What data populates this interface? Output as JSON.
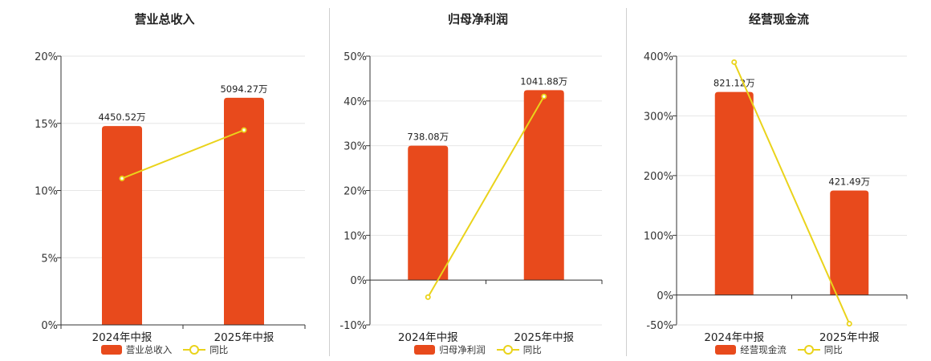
{
  "colors": {
    "bar": "#e84a1c",
    "line": "#ead31b",
    "axis": "#333333",
    "grid": "#e6e6e6"
  },
  "chart_data": [
    {
      "type": "bar",
      "title": "营业总收入",
      "categories": [
        "2024年中报",
        "2025年中报"
      ],
      "ylim": [
        0,
        20
      ],
      "yticks": [
        "0%",
        "5%",
        "10%",
        "15%",
        "20%"
      ],
      "ytick_values": [
        0,
        5,
        10,
        15,
        20
      ],
      "series": [
        {
          "name": "营业总收入",
          "type": "bar",
          "values": [
            14.8,
            16.9
          ],
          "labels": [
            "4450.52万",
            "5094.27万"
          ]
        },
        {
          "name": "同比",
          "type": "line",
          "values": [
            10.9,
            14.5
          ]
        }
      ],
      "grid": true,
      "legend": "bottom"
    },
    {
      "type": "bar",
      "title": "归母净利润",
      "categories": [
        "2024年中报",
        "2025年中报"
      ],
      "ylim": [
        -10,
        50
      ],
      "yticks": [
        "-10%",
        "0%",
        "10%",
        "20%",
        "30%",
        "40%",
        "50%"
      ],
      "ytick_values": [
        -10,
        0,
        10,
        20,
        30,
        40,
        50
      ],
      "series": [
        {
          "name": "归母净利润",
          "type": "bar",
          "values": [
            30.0,
            42.4
          ],
          "labels": [
            "738.08万",
            "1041.88万"
          ]
        },
        {
          "name": "同比",
          "type": "line",
          "values": [
            -3.8,
            41.0
          ]
        }
      ],
      "grid": true,
      "legend": "bottom"
    },
    {
      "type": "bar",
      "title": "经营现金流",
      "categories": [
        "2024年中报",
        "2025年中报"
      ],
      "ylim": [
        -50,
        400
      ],
      "yticks": [
        "-50%",
        "0%",
        "100%",
        "200%",
        "300%",
        "400%"
      ],
      "ytick_values": [
        -50,
        0,
        100,
        200,
        300,
        400
      ],
      "series": [
        {
          "name": "经营现金流",
          "type": "bar",
          "values": [
            340,
            175
          ],
          "labels": [
            "821.12万",
            "421.49万"
          ]
        },
        {
          "name": "同比",
          "type": "line",
          "values": [
            390,
            -48
          ]
        }
      ],
      "grid": true,
      "legend": "bottom"
    }
  ]
}
